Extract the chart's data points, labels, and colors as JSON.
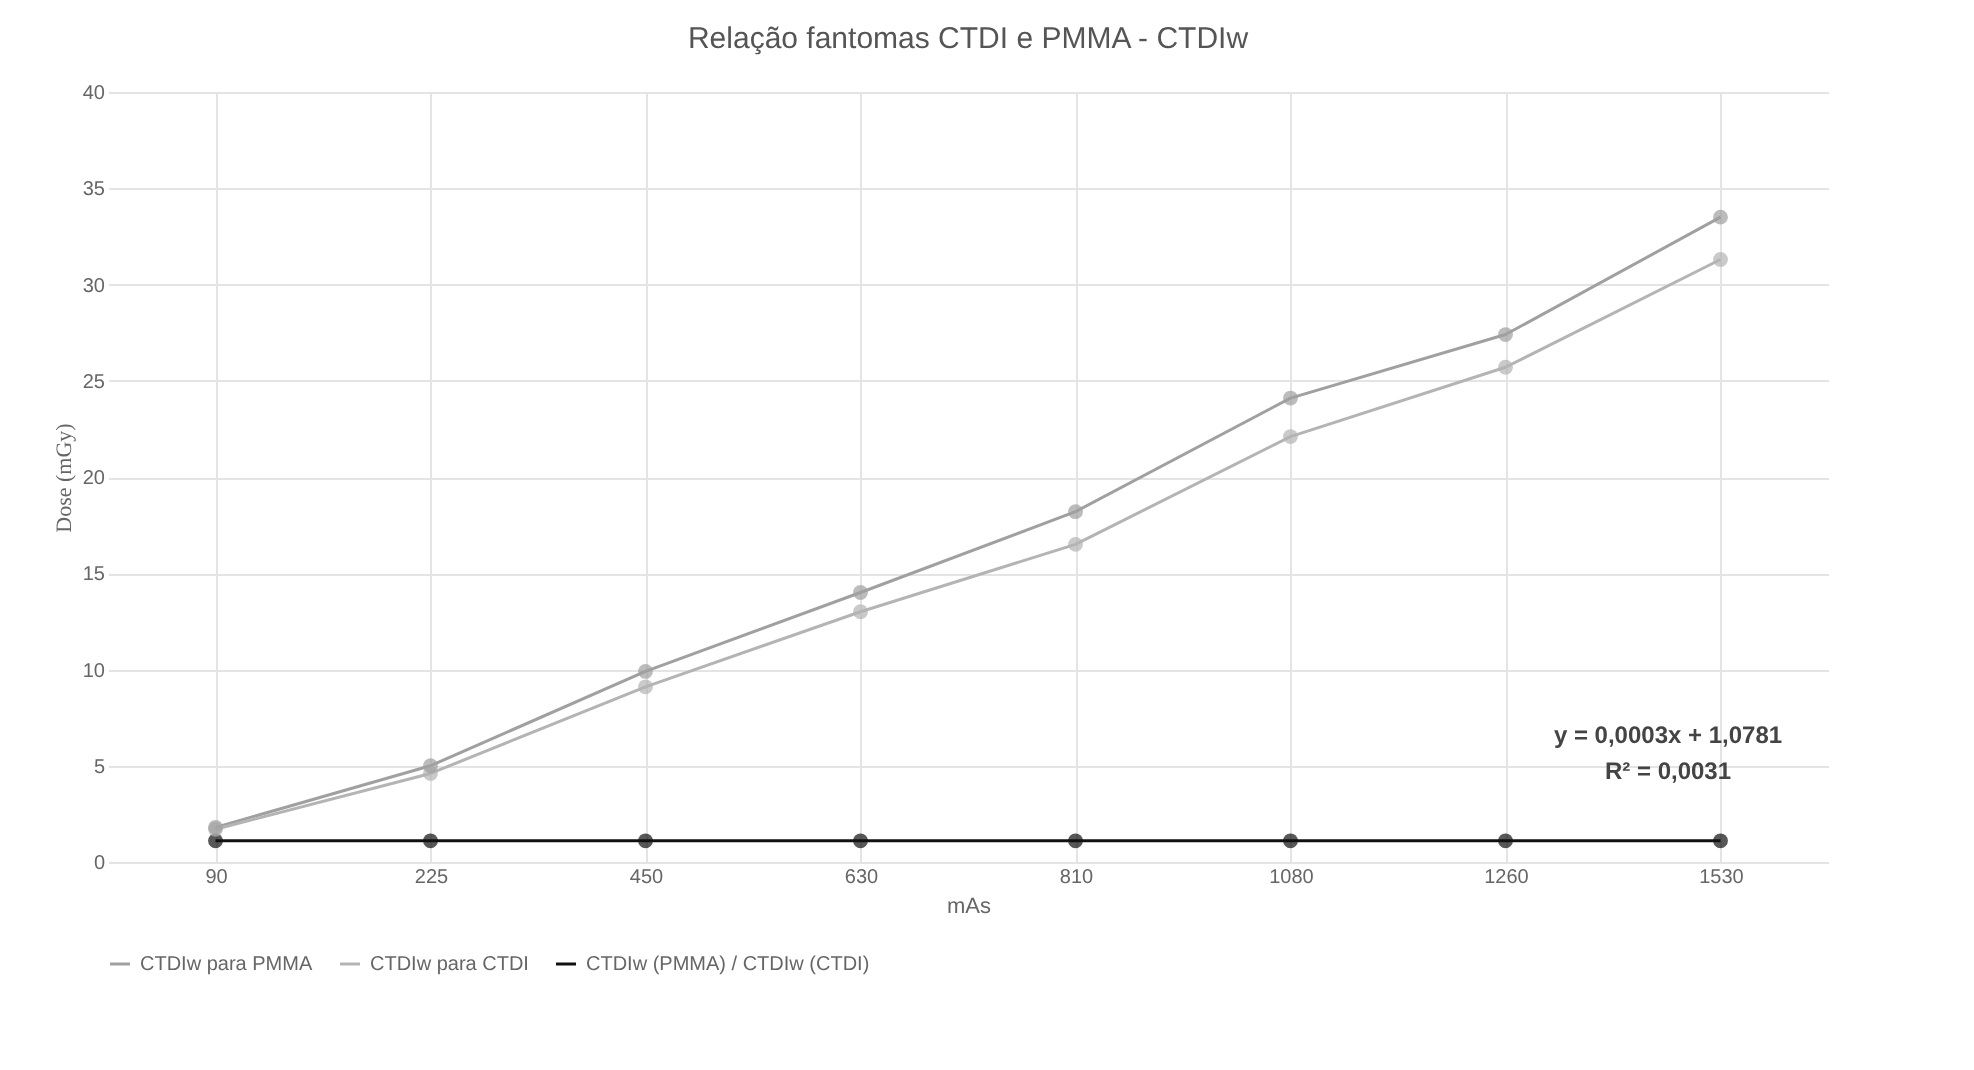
{
  "chart_data": {
    "type": "line",
    "title": "Relação fantomas CTDI e PMMA - CTDIw",
    "xlabel": "mAs",
    "ylabel": "Dose (mGy)",
    "categories": [
      "90",
      "225",
      "450",
      "630",
      "810",
      "1080",
      "1260",
      "1530"
    ],
    "series": [
      {
        "name": "CTDIw para PMMA",
        "color": "#a0a0a0",
        "values": [
          1.8,
          5.0,
          9.9,
          14.0,
          18.2,
          24.1,
          27.4,
          33.5
        ]
      },
      {
        "name": "CTDIw para CTDI",
        "color": "#b4b4b4",
        "values": [
          1.7,
          4.6,
          9.1,
          13.0,
          16.5,
          22.1,
          25.7,
          31.3
        ]
      },
      {
        "name": "CTDIw (PMMA) / CTDIw (CTDI)",
        "color": "#111111",
        "values": [
          1.1,
          1.1,
          1.1,
          1.1,
          1.1,
          1.1,
          1.1,
          1.1
        ]
      }
    ],
    "ylim": [
      0,
      40
    ],
    "yticks": [
      0,
      5,
      10,
      15,
      20,
      25,
      30,
      35,
      40
    ],
    "grid": true,
    "legend": "bottom",
    "marker": "circle",
    "annotations": [
      "y = 0,0003x + 1,0781",
      "R² = 0,0031"
    ]
  }
}
